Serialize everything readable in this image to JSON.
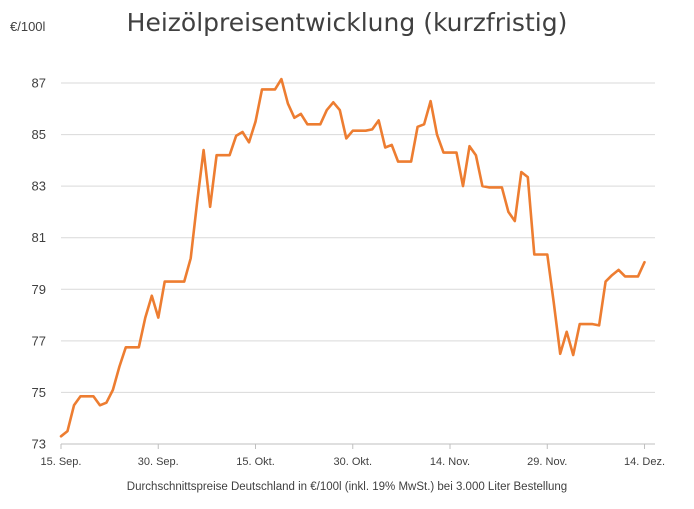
{
  "chart_data": {
    "type": "line",
    "title": "Heizölpreisentwicklung (kurzfristig)",
    "ylabel": "€/100l",
    "xlabel": "Durchschnittspreise Deutschland in €/100l (inkl. 19% MwSt.) bei 3.000 Liter Bestellung",
    "ylim": [
      73,
      88
    ],
    "yticks": [
      73,
      75,
      77,
      79,
      81,
      83,
      85,
      87
    ],
    "grid": true,
    "line_color": "#ED7D31",
    "x_ticks": [
      "15. Sep.",
      "30. Sep.",
      "15. Okt.",
      "30. Okt.",
      "14. Nov.",
      "29. Nov.",
      "14. Dez."
    ],
    "x_tick_index": [
      0,
      15,
      30,
      45,
      60,
      75,
      90
    ],
    "x_max_index": 91,
    "series": [
      {
        "values": [
          73.3,
          73.5,
          74.5,
          74.85,
          74.85,
          74.85,
          74.5,
          74.6,
          75.1,
          76.0,
          76.75,
          76.75,
          76.75,
          77.9,
          78.75,
          77.9,
          79.3,
          79.3,
          79.3,
          79.3,
          80.2,
          82.4,
          84.4,
          82.2,
          84.2,
          84.2,
          84.2,
          84.95,
          85.1,
          84.7,
          85.5,
          86.75,
          86.75,
          86.75,
          87.15,
          86.2,
          85.65,
          85.8,
          85.4,
          85.4,
          85.4,
          85.95,
          86.25,
          85.95,
          84.85,
          85.15,
          85.15,
          85.15,
          85.2,
          85.55,
          84.5,
          84.6,
          83.95,
          83.95,
          83.95,
          85.3,
          85.4,
          86.3,
          85.0,
          84.3,
          84.3,
          84.3,
          83.0,
          84.55,
          84.2,
          83.0,
          82.95,
          82.95,
          82.95,
          82.0,
          81.65,
          83.55,
          83.35,
          80.35,
          80.35,
          80.35,
          78.5,
          76.5,
          77.35,
          76.45,
          77.65,
          77.65,
          77.65,
          77.6,
          79.3,
          79.55,
          79.75,
          79.5,
          79.5,
          79.5,
          80.05
        ]
      }
    ]
  }
}
